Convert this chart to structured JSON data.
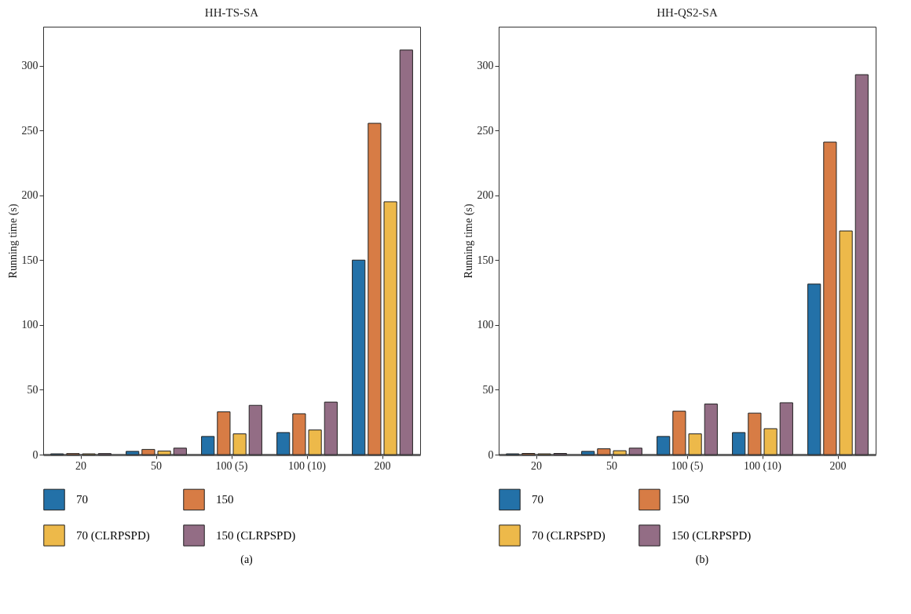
{
  "chart_data": [
    {
      "type": "bar",
      "title": "HH-TS-SA",
      "ylabel": "Running time (s)",
      "categories": [
        "20",
        "50",
        "100 (5)",
        "100 (10)",
        "200"
      ],
      "ylim": [
        0,
        330
      ],
      "yticks": [
        0,
        50,
        100,
        150,
        200,
        250,
        300
      ],
      "legend": "bottom",
      "grid": false,
      "annotations": [
        "(a)"
      ],
      "series": [
        {
          "name": "70",
          "color": "#2371a8",
          "values": [
            0.6,
            2.5,
            14,
            17,
            150
          ]
        },
        {
          "name": "150",
          "color": "#d77c45",
          "values": [
            0.8,
            4,
            33,
            31.5,
            255.5
          ]
        },
        {
          "name": "70 (CLRPSPD)",
          "color": "#edb94a",
          "values": [
            0.6,
            2.8,
            16,
            19,
            195
          ]
        },
        {
          "name": "150 (CLRPSPD)",
          "color": "#936d85",
          "values": [
            0.8,
            5,
            38,
            40.5,
            312
          ]
        }
      ]
    },
    {
      "type": "bar",
      "title": "HH-QS2-SA",
      "ylabel": "Running time (s)",
      "categories": [
        "20",
        "50",
        "100 (5)",
        "100 (10)",
        "200"
      ],
      "ylim": [
        0,
        330
      ],
      "yticks": [
        0,
        50,
        100,
        150,
        200,
        250,
        300
      ],
      "legend": "bottom",
      "grid": false,
      "annotations": [
        "(b)"
      ],
      "series": [
        {
          "name": "70",
          "color": "#2371a8",
          "values": [
            0.6,
            2.5,
            14,
            17,
            131.5
          ]
        },
        {
          "name": "150",
          "color": "#d77c45",
          "values": [
            0.9,
            4.5,
            33.5,
            32,
            241
          ]
        },
        {
          "name": "70 (CLRPSPD)",
          "color": "#edb94a",
          "values": [
            0.6,
            3,
            16,
            20,
            172.5
          ]
        },
        {
          "name": "150 (CLRPSPD)",
          "color": "#936d85",
          "values": [
            0.9,
            5,
            39,
            40,
            293
          ]
        }
      ]
    }
  ]
}
